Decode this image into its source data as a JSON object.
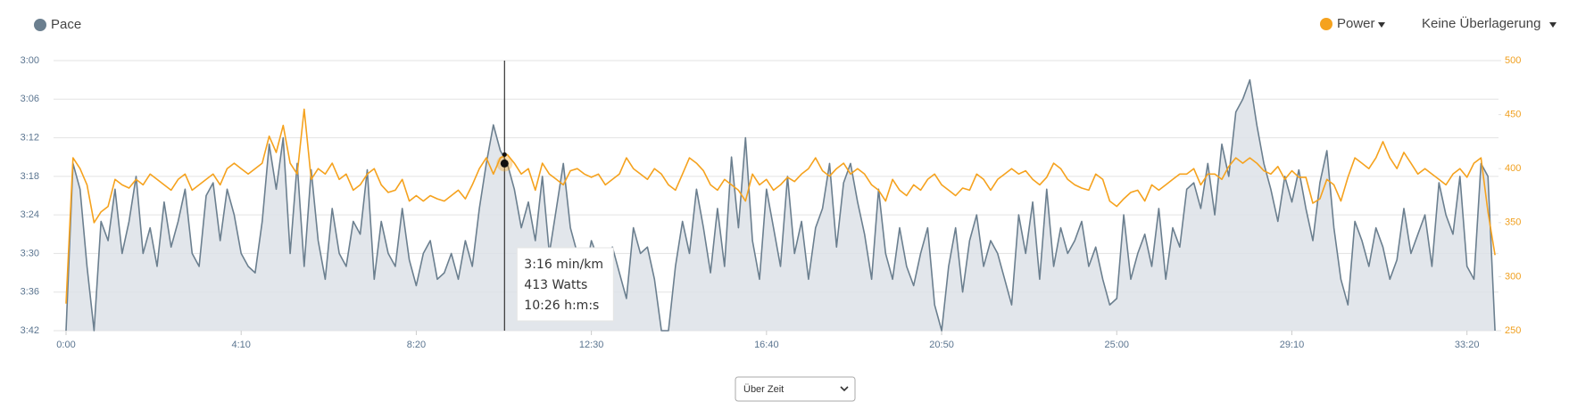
{
  "chart_data": {
    "type": "line",
    "overlay_label": "Keine Überlagerung",
    "x_mode_label": "Über Zeit",
    "xlim": [
      0,
      2045
    ],
    "xticks": [
      {
        "value": 0,
        "label": "0:00"
      },
      {
        "value": 250,
        "label": "4:10"
      },
      {
        "value": 500,
        "label": "8:20"
      },
      {
        "value": 750,
        "label": "12:30"
      },
      {
        "value": 1000,
        "label": "16:40"
      },
      {
        "value": 1250,
        "label": "20:50"
      },
      {
        "value": 1500,
        "label": "25:00"
      },
      {
        "value": 1750,
        "label": "29:10"
      },
      {
        "value": 2000,
        "label": "33:20"
      }
    ],
    "ylim": [
      222,
      180
    ],
    "yticks": [
      {
        "value": 180,
        "label": "3:00"
      },
      {
        "value": 186,
        "label": "3:06"
      },
      {
        "value": 192,
        "label": "3:12"
      },
      {
        "value": 198,
        "label": "3:18"
      },
      {
        "value": 204,
        "label": "3:24"
      },
      {
        "value": 210,
        "label": "3:30"
      },
      {
        "value": 216,
        "label": "3:36"
      },
      {
        "value": 222,
        "label": "3:42"
      }
    ],
    "y2lim": [
      250,
      500
    ],
    "y2ticks": [
      250,
      300,
      350,
      400,
      450,
      500
    ],
    "grid": true,
    "x": [
      0,
      10,
      20,
      30,
      40,
      50,
      60,
      70,
      80,
      90,
      100,
      110,
      120,
      130,
      140,
      150,
      160,
      170,
      180,
      190,
      200,
      210,
      220,
      230,
      240,
      250,
      260,
      270,
      280,
      290,
      300,
      310,
      320,
      330,
      340,
      350,
      360,
      370,
      380,
      390,
      400,
      410,
      420,
      430,
      440,
      450,
      460,
      470,
      480,
      490,
      500,
      510,
      520,
      530,
      540,
      550,
      560,
      570,
      580,
      590,
      600,
      610,
      620,
      630,
      640,
      650,
      660,
      670,
      680,
      690,
      700,
      710,
      720,
      730,
      740,
      750,
      760,
      770,
      780,
      790,
      800,
      810,
      820,
      830,
      840,
      850,
      860,
      870,
      880,
      890,
      900,
      910,
      920,
      930,
      940,
      950,
      960,
      970,
      980,
      990,
      1000,
      1010,
      1020,
      1030,
      1040,
      1050,
      1060,
      1070,
      1080,
      1090,
      1100,
      1110,
      1120,
      1130,
      1140,
      1150,
      1160,
      1170,
      1180,
      1190,
      1200,
      1210,
      1220,
      1230,
      1240,
      1250,
      1260,
      1270,
      1280,
      1290,
      1300,
      1310,
      1320,
      1330,
      1340,
      1350,
      1360,
      1370,
      1380,
      1390,
      1400,
      1410,
      1420,
      1430,
      1440,
      1450,
      1460,
      1470,
      1480,
      1490,
      1500,
      1510,
      1520,
      1530,
      1540,
      1550,
      1560,
      1570,
      1580,
      1590,
      1600,
      1610,
      1620,
      1630,
      1640,
      1650,
      1660,
      1670,
      1680,
      1690,
      1700,
      1710,
      1720,
      1730,
      1740,
      1750,
      1760,
      1770,
      1780,
      1790,
      1800,
      1810,
      1820,
      1830,
      1840,
      1850,
      1860,
      1870,
      1880,
      1890,
      1900,
      1910,
      1920,
      1930,
      1940,
      1950,
      1960,
      1970,
      1980,
      1990,
      2000,
      2010,
      2020,
      2030,
      2040
    ],
    "series": [
      {
        "name": "Pace",
        "color": "#6b7f8f",
        "fill": "#dde2e7",
        "axis": "y",
        "values": [
          222,
          196,
          200,
          212,
          222,
          205,
          208,
          200,
          210,
          205,
          198,
          210,
          206,
          212,
          202,
          209,
          205,
          200,
          210,
          212,
          201,
          199,
          208,
          200,
          204,
          210,
          212,
          213,
          205,
          193,
          200,
          192,
          210,
          196,
          212,
          197,
          208,
          214,
          203,
          210,
          212,
          205,
          207,
          197,
          214,
          205,
          210,
          212,
          203,
          211,
          215,
          210,
          208,
          214,
          213,
          210,
          214,
          208,
          212,
          203,
          196,
          190,
          194,
          196,
          200,
          206,
          202,
          208,
          198,
          210,
          203,
          196,
          206,
          210,
          214,
          208,
          211,
          212,
          209,
          213,
          217,
          206,
          210,
          209,
          214,
          222,
          222,
          212,
          205,
          210,
          200,
          206,
          213,
          203,
          212,
          195,
          206,
          192,
          208,
          214,
          200,
          206,
          212,
          198,
          210,
          205,
          214,
          206,
          203,
          196,
          209,
          199,
          196,
          202,
          207,
          214,
          200,
          210,
          214,
          206,
          212,
          215,
          210,
          206,
          218,
          222,
          212,
          206,
          216,
          208,
          204,
          212,
          208,
          210,
          214,
          218,
          204,
          210,
          202,
          214,
          200,
          212,
          206,
          210,
          208,
          205,
          212,
          209,
          214,
          218,
          217,
          204,
          214,
          210,
          207,
          212,
          203,
          214,
          206,
          209,
          200,
          199,
          203,
          196,
          204,
          193,
          198,
          188,
          186,
          183,
          190,
          196,
          200,
          205,
          198,
          202,
          197,
          203,
          208,
          199,
          194,
          206,
          214,
          218,
          205,
          208,
          212,
          206,
          209,
          214,
          211,
          203,
          210,
          207,
          204,
          212,
          199,
          204,
          207,
          198,
          212,
          214,
          196,
          198,
          222
        ]
      },
      {
        "name": "Power",
        "color": "#f5a21e",
        "axis": "y2",
        "values": [
          275,
          410,
          400,
          385,
          350,
          360,
          365,
          390,
          385,
          382,
          390,
          385,
          395,
          390,
          385,
          380,
          390,
          395,
          380,
          385,
          390,
          395,
          385,
          400,
          405,
          400,
          395,
          400,
          405,
          430,
          415,
          440,
          405,
          395,
          455,
          390,
          400,
          395,
          405,
          390,
          395,
          380,
          385,
          395,
          400,
          385,
          378,
          380,
          390,
          370,
          375,
          370,
          375,
          372,
          370,
          375,
          380,
          372,
          385,
          400,
          410,
          395,
          410,
          413,
          405,
          395,
          400,
          380,
          405,
          395,
          390,
          385,
          398,
          400,
          395,
          392,
          395,
          385,
          390,
          395,
          410,
          400,
          395,
          390,
          400,
          395,
          385,
          380,
          395,
          410,
          405,
          398,
          385,
          380,
          390,
          385,
          380,
          370,
          395,
          385,
          390,
          380,
          385,
          392,
          388,
          395,
          400,
          410,
          398,
          393,
          400,
          405,
          395,
          400,
          395,
          385,
          380,
          370,
          390,
          380,
          375,
          385,
          380,
          390,
          395,
          385,
          380,
          375,
          382,
          380,
          395,
          390,
          380,
          390,
          395,
          400,
          395,
          398,
          390,
          385,
          392,
          405,
          400,
          390,
          385,
          382,
          380,
          395,
          390,
          370,
          365,
          372,
          378,
          380,
          370,
          385,
          380,
          385,
          390,
          395,
          395,
          400,
          385,
          395,
          395,
          390,
          402,
          410,
          405,
          410,
          405,
          398,
          395,
          402,
          390,
          398,
          392,
          392,
          368,
          372,
          390,
          385,
          370,
          392,
          410,
          405,
          400,
          410,
          425,
          410,
          400,
          415,
          405,
          395,
          400,
          395,
          390,
          385,
          395,
          400,
          392,
          405,
          410,
          360,
          320
        ]
      }
    ],
    "tooltip": {
      "x": 626,
      "pace": 196,
      "power": 413,
      "lines": [
        "3:16 min/km",
        "413 Watts",
        "10:26 h:m:s"
      ]
    }
  }
}
